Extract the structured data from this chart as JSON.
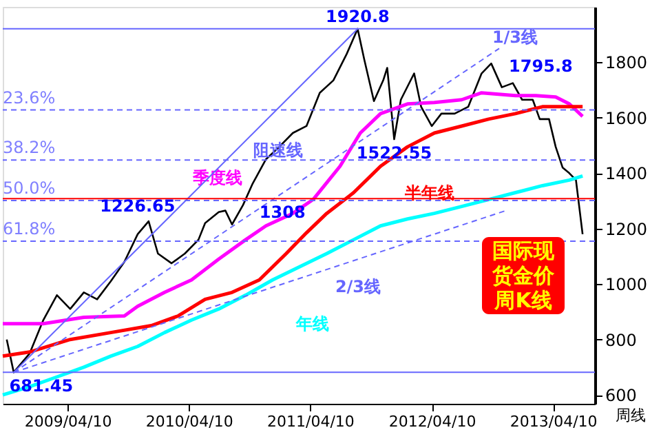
{
  "chart_data": {
    "type": "line",
    "xlim": [
      "2008-09-27",
      "2013-08-14"
    ],
    "xticks": [
      {
        "value": "2009-04-10",
        "label": "2009/04/10"
      },
      {
        "value": "2010-04-10",
        "label": "2010/04/10"
      },
      {
        "value": "2011-04-10",
        "label": "2011/04/10"
      },
      {
        "value": "2012-04-10",
        "label": "2012/04/10"
      },
      {
        "value": "2013-04-10",
        "label": "2013/04/10"
      }
    ],
    "ylim": [
      568,
      2000
    ],
    "yticks": [
      600,
      800,
      1000,
      1200,
      1400,
      1600,
      1800
    ],
    "grid": false,
    "legend": false,
    "marker": "none",
    "series": [
      {
        "color": "#000000",
        "x": [
          "2008-10-09",
          "2008-10-30",
          "2008-12-17",
          "2009-01-27",
          "2009-03-09",
          "2009-04-18",
          "2009-05-29",
          "2009-07-08",
          "2009-08-18",
          "2009-09-28",
          "2009-11-07",
          "2009-12-10",
          "2010-01-07",
          "2010-02-17",
          "2010-03-29",
          "2010-05-09",
          "2010-05-29",
          "2010-07-09",
          "2010-07-29",
          "2010-08-18",
          "2010-09-20",
          "2010-10-18",
          "2010-11-28",
          "2011-01-07",
          "2011-02-17",
          "2011-03-30",
          "2011-05-09",
          "2011-06-19",
          "2011-07-29",
          "2011-08-31",
          "2011-09-20",
          "2011-10-19",
          "2011-11-16",
          "2011-11-28",
          "2011-12-19",
          "2012-01-08",
          "2012-02-17",
          "2012-03-09",
          "2012-04-10",
          "2012-05-09",
          "2012-06-18",
          "2012-07-29",
          "2012-09-07",
          "2012-10-06",
          "2012-11-07",
          "2012-12-10",
          "2013-01-07",
          "2013-02-08",
          "2013-03-01",
          "2013-03-29",
          "2013-04-18",
          "2013-05-09",
          "2013-05-29",
          "2013-06-18",
          "2013-07-08"
        ],
        "values": [
          800,
          681.45,
          750,
          870,
          960,
          910,
          970,
          945,
          1010,
          1080,
          1180,
          1226.65,
          1110,
          1075,
          1110,
          1160,
          1220,
          1260,
          1265,
          1215,
          1285,
          1360,
          1450,
          1495,
          1545,
          1570,
          1690,
          1735,
          1830,
          1920.8,
          1810,
          1660,
          1735,
          1780,
          1522.55,
          1665,
          1760,
          1640,
          1570,
          1615,
          1615,
          1640,
          1760,
          1795.8,
          1710,
          1725,
          1665,
          1665,
          1595,
          1595,
          1495,
          1420,
          1400,
          1375,
          1180
        ]
      },
      {
        "name": "季度线",
        "color": "#ff00ff",
        "x": [
          "2008-09-27",
          "2009-01-27",
          "2009-05-29",
          "2009-09-28",
          "2009-11-07",
          "2010-01-27",
          "2010-04-18",
          "2010-07-09",
          "2010-09-28",
          "2010-11-28",
          "2011-02-17",
          "2011-04-19",
          "2011-07-09",
          "2011-09-08",
          "2011-11-08",
          "2012-01-28",
          "2012-04-18",
          "2012-07-09",
          "2012-09-07",
          "2012-12-18",
          "2013-02-17",
          "2013-04-18",
          "2013-05-29",
          "2013-07-08"
        ],
        "values": [
          857,
          857,
          880,
          885,
          920,
          970,
          1015,
          1090,
          1160,
          1210,
          1255,
          1305,
          1425,
          1545,
          1615,
          1650,
          1655,
          1665,
          1690,
          1680,
          1680,
          1675,
          1650,
          1605
        ]
      },
      {
        "name": "半年线",
        "color": "#ff0000",
        "x": [
          "2008-09-27",
          "2008-12-17",
          "2009-04-18",
          "2009-08-18",
          "2009-12-18",
          "2010-03-09",
          "2010-05-29",
          "2010-08-18",
          "2010-11-08",
          "2011-01-28",
          "2011-03-30",
          "2011-05-30",
          "2011-08-19",
          "2011-11-08",
          "2012-01-28",
          "2012-04-18",
          "2012-07-09",
          "2012-09-28",
          "2012-12-18",
          "2013-03-09",
          "2013-05-09",
          "2013-07-08"
        ],
        "values": [
          740,
          755,
          800,
          825,
          850,
          885,
          945,
          970,
          1015,
          1110,
          1185,
          1255,
          1330,
          1425,
          1495,
          1545,
          1570,
          1595,
          1615,
          1640,
          1640,
          1640
        ]
      },
      {
        "name": "年线",
        "color": "#00ffff",
        "x": [
          "2008-09-27",
          "2008-12-17",
          "2009-03-09",
          "2009-05-29",
          "2009-08-18",
          "2009-11-07",
          "2010-01-27",
          "2010-04-18",
          "2010-07-09",
          "2010-09-28",
          "2010-12-18",
          "2011-05-30",
          "2011-08-19",
          "2011-11-08",
          "2012-01-28",
          "2012-04-18",
          "2012-07-09",
          "2012-09-28",
          "2012-12-18",
          "2013-03-09",
          "2013-05-29",
          "2013-07-08"
        ],
        "values": [
          600,
          630,
          665,
          700,
          740,
          775,
          825,
          870,
          910,
          960,
          1015,
          1110,
          1160,
          1210,
          1235,
          1255,
          1280,
          1305,
          1330,
          1355,
          1375,
          1390
        ]
      },
      {
        "name": "阻速线",
        "color": "#6666ff",
        "x": [
          "2008-10-30",
          "2011-08-31"
        ],
        "values": [
          681.45,
          1920.8
        ]
      },
      {
        "name": "1/3线",
        "color": "#6666ff",
        "line_style": "dashed",
        "x": [
          "2008-10-30",
          "2012-10-30"
        ],
        "values": [
          681.45,
          1850
        ]
      },
      {
        "name": "2/3线",
        "color": "#6666ff",
        "line_style": "dashed",
        "x": [
          "2008-10-30",
          "2012-11-19"
        ],
        "values": [
          681.45,
          1265
        ]
      }
    ],
    "ref_lines": [
      {
        "axis": "y",
        "value": 1920.8,
        "color": "#6666ff",
        "line_style": "solid"
      },
      {
        "axis": "y",
        "value": 1628.3,
        "color": "#6666ff",
        "line_style": "dashed"
      },
      {
        "axis": "y",
        "value": 1447.4,
        "color": "#6666ff",
        "line_style": "dashed"
      },
      {
        "axis": "y",
        "value": 1301.1,
        "color": "#6666ff",
        "line_style": "dashed"
      },
      {
        "axis": "y",
        "value": 1154.9,
        "color": "#6666ff",
        "line_style": "dashed"
      },
      {
        "axis": "y",
        "value": 681.45,
        "color": "#6666ff",
        "line_style": "solid"
      },
      {
        "axis": "y",
        "value": 1308,
        "color": "#ff0000",
        "line_style": "solid"
      }
    ],
    "annotations": [
      {
        "text": "1920.8",
        "x": "2011-08-31",
        "y": 1920.8
      },
      {
        "text": "1795.8",
        "x": "2012-10-06",
        "y": 1795.8
      },
      {
        "text": "1226.65",
        "x": "2009-12-10",
        "y": 1226.65
      },
      {
        "text": "1308",
        "x": "2010-11-28",
        "y": 1308
      },
      {
        "text": "1522.55",
        "x": "2011-12-19",
        "y": 1522.55
      },
      {
        "text": "681.45",
        "x": "2008-10-30",
        "y": 681.45
      },
      {
        "text": "23.6%",
        "x": "2008-09-27",
        "y": 1628.3
      },
      {
        "text": "38.2%",
        "x": "2008-09-27",
        "y": 1447.4
      },
      {
        "text": "50.0%",
        "x": "2008-09-27",
        "y": 1301.1
      },
      {
        "text": "61.8%",
        "x": "2008-09-27",
        "y": 1154.9
      },
      "国际现货金价周K线",
      "周线"
    ]
  }
}
